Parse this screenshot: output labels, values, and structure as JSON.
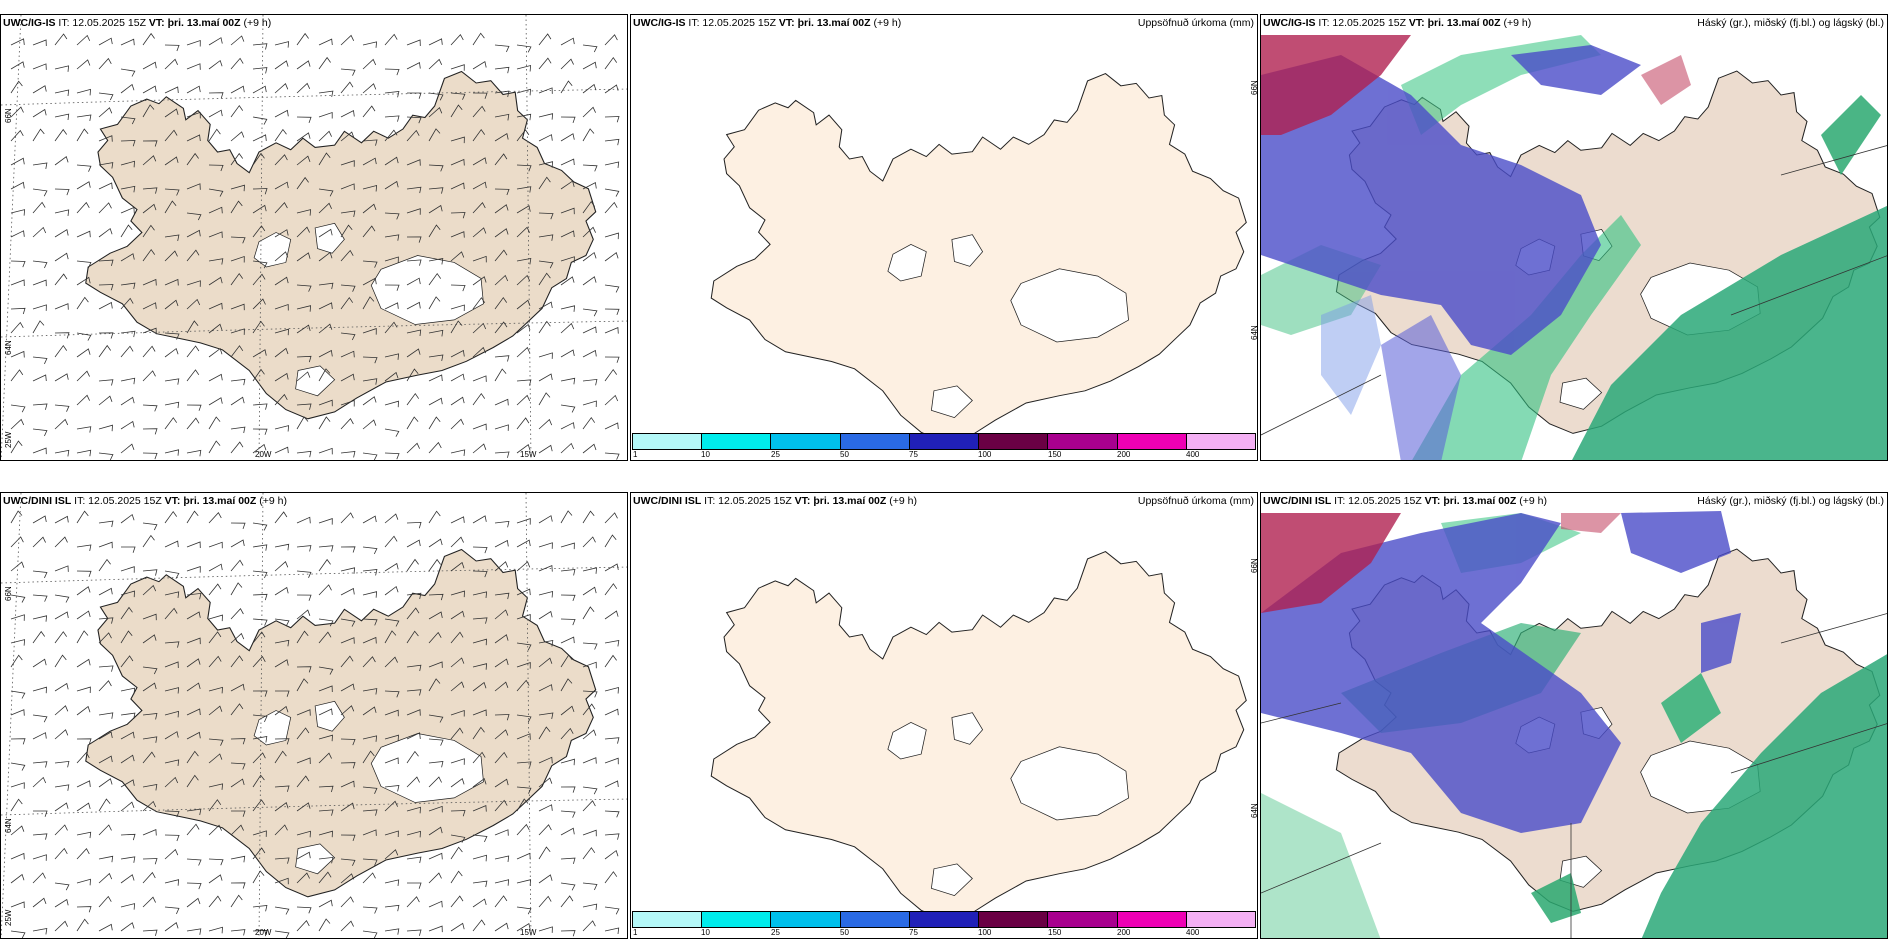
{
  "rows": [
    {
      "model": "UWC/IG-IS",
      "it_label": "IT: 12.05.2025 15Z",
      "vt_label": "VT: þri. 13.maí 00Z",
      "lead": "(+9 h)"
    },
    {
      "model": "UWC/DINI ISL",
      "it_label": "IT: 12.05.2025 15Z",
      "vt_label": "VT: þri. 13.maí 00Z",
      "lead": "(+9 h)"
    }
  ],
  "precip_title": "Uppsöfnuð úrkoma (mm)",
  "cloud_title": "Háský (gr.), miðský (fj.bl.) og lágský (bl.)",
  "lat_labels": [
    "66N",
    "64N",
    "25W"
  ],
  "lon_labels": [
    "20W",
    "15W"
  ],
  "map_lat_labels_mid": [
    "66N",
    "64N"
  ],
  "colorbar": {
    "ticks": [
      "1",
      "10",
      "25",
      "50",
      "75",
      "100",
      "150",
      "200",
      "400"
    ],
    "colors": [
      "#b4f8f8",
      "#00ecec",
      "#00c0ec",
      "#2a6ae4",
      "#2020b8",
      "#6a0044",
      "#a8008e",
      "#ee00b4",
      "#f4b0f4"
    ]
  },
  "colors": {
    "land_wind": "#ebdcc9",
    "land_precip": "#fdf0e2",
    "land_cloud": "#ecdccf",
    "high_cloud": "#b02050",
    "mid_cloud": "#4a4cc8",
    "low_cloud": "#20a870"
  }
}
